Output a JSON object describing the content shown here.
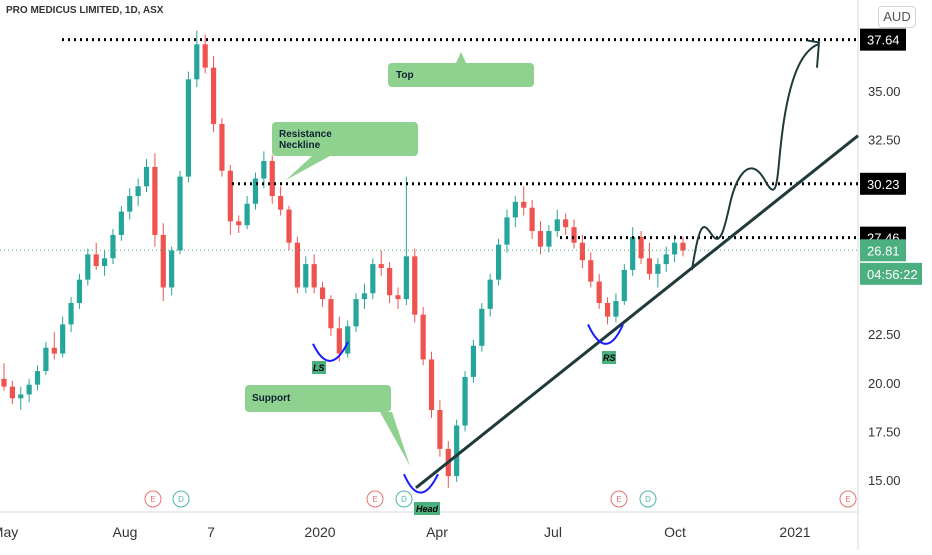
{
  "header": {
    "symbol_title": "PRO MEDICUS LIMITED, 1D, ASX",
    "currency": "AUD"
  },
  "chart_data": {
    "type": "candlestick",
    "title": "PRO MEDICUS LIMITED, 1D, ASX",
    "y_tick_labels": [
      "35.00",
      "32.50",
      "22.50",
      "20.00",
      "17.50",
      "15.00"
    ],
    "y_ticks": [
      35.0,
      32.5,
      22.5,
      20.0,
      17.5,
      15.0
    ],
    "ylim": [
      13.0,
      39.0
    ],
    "x_tick_labels": [
      "May",
      "Aug",
      "7",
      "2020",
      "Apr",
      "Jul",
      "Oct",
      "2021"
    ],
    "price_markers": [
      {
        "label": "37.64",
        "value": 37.64,
        "style": "dark"
      },
      {
        "label": "30.23",
        "value": 30.23,
        "style": "dark"
      },
      {
        "label": "27.46",
        "value": 27.46,
        "style": "dark"
      },
      {
        "label": "26.81",
        "value": 26.81,
        "style": "green"
      },
      {
        "label": "04:56:22",
        "value": 25.6,
        "style": "green"
      }
    ],
    "horizontal_levels": [
      37.64,
      30.23,
      27.46
    ],
    "last_price_line": 26.81,
    "annotations": {
      "top": "Top",
      "resistance": "Resistance\nNeckline",
      "support": "Support",
      "left_shoulder": "LS",
      "head": "Head",
      "right_shoulder": "RS"
    },
    "event_markers": [
      "E",
      "D",
      "E",
      "D",
      "E",
      "D",
      "E"
    ],
    "grid": false,
    "colors": {
      "up": "#26a69a",
      "down": "#ef5350",
      "trendline": "#1f3a3a",
      "arc": "#1a1aff",
      "callout": "#8fd18f",
      "marker_dark": "#000000",
      "marker_green": "#4caf80"
    },
    "series": [
      {
        "values": [
          [
            20.2,
            21.0,
            19.6,
            19.8
          ],
          [
            19.8,
            20.1,
            18.9,
            19.2
          ],
          [
            19.2,
            19.8,
            18.6,
            19.4
          ],
          [
            19.4,
            20.2,
            19.0,
            19.9
          ],
          [
            19.9,
            20.9,
            19.6,
            20.6
          ],
          [
            20.6,
            22.1,
            20.4,
            21.8
          ],
          [
            21.8,
            22.6,
            21.2,
            21.5
          ],
          [
            21.5,
            23.4,
            21.3,
            23.0
          ],
          [
            23.0,
            24.4,
            22.6,
            24.1
          ],
          [
            24.1,
            25.6,
            23.8,
            25.3
          ],
          [
            25.3,
            26.9,
            25.0,
            26.6
          ],
          [
            26.6,
            27.2,
            25.8,
            26.0
          ],
          [
            26.0,
            26.8,
            25.5,
            26.4
          ],
          [
            26.4,
            27.9,
            26.1,
            27.6
          ],
          [
            27.6,
            29.1,
            27.3,
            28.8
          ],
          [
            28.8,
            30.0,
            28.4,
            29.6
          ],
          [
            29.6,
            30.5,
            29.1,
            30.1
          ],
          [
            30.1,
            31.5,
            29.8,
            31.1
          ],
          [
            31.1,
            31.8,
            27.0,
            27.6
          ],
          [
            27.6,
            28.2,
            24.2,
            24.9
          ],
          [
            24.9,
            27.0,
            24.5,
            26.8
          ],
          [
            26.8,
            30.9,
            26.6,
            30.6
          ],
          [
            30.6,
            36.0,
            30.3,
            35.6
          ],
          [
            35.6,
            38.1,
            35.2,
            37.4
          ],
          [
            37.4,
            37.9,
            35.9,
            36.2
          ],
          [
            36.2,
            36.8,
            32.9,
            33.3
          ],
          [
            33.3,
            33.6,
            30.6,
            30.9
          ],
          [
            30.9,
            31.2,
            27.6,
            28.3
          ],
          [
            28.3,
            28.6,
            27.7,
            28.1
          ],
          [
            28.1,
            29.6,
            27.9,
            29.2
          ],
          [
            29.2,
            30.8,
            28.9,
            30.5
          ],
          [
            30.5,
            31.9,
            30.0,
            31.4
          ],
          [
            31.4,
            31.7,
            29.2,
            29.6
          ],
          [
            29.6,
            30.1,
            28.6,
            28.9
          ],
          [
            28.9,
            29.1,
            26.8,
            27.2
          ],
          [
            27.2,
            27.5,
            24.6,
            24.9
          ],
          [
            24.9,
            26.5,
            24.6,
            26.1
          ],
          [
            26.1,
            26.6,
            24.6,
            24.9
          ],
          [
            24.9,
            25.2,
            23.9,
            24.3
          ],
          [
            24.3,
            24.5,
            22.4,
            22.8
          ],
          [
            22.8,
            23.4,
            21.1,
            21.5
          ],
          [
            21.5,
            23.2,
            21.3,
            22.9
          ],
          [
            22.9,
            24.6,
            22.6,
            24.3
          ],
          [
            24.3,
            25.1,
            23.8,
            24.6
          ],
          [
            24.6,
            26.4,
            24.3,
            26.1
          ],
          [
            26.1,
            26.8,
            25.5,
            25.9
          ],
          [
            25.9,
            26.2,
            24.1,
            24.5
          ],
          [
            24.5,
            24.9,
            23.8,
            24.3
          ],
          [
            24.3,
            30.6,
            24.0,
            26.5
          ],
          [
            26.5,
            26.9,
            23.1,
            23.5
          ],
          [
            23.5,
            23.9,
            20.9,
            21.2
          ],
          [
            21.2,
            21.6,
            18.2,
            18.6
          ],
          [
            18.6,
            19.1,
            16.2,
            16.6
          ],
          [
            16.6,
            17.0,
            14.6,
            15.2
          ],
          [
            15.2,
            18.1,
            14.9,
            17.8
          ],
          [
            17.8,
            20.6,
            17.5,
            20.3
          ],
          [
            20.3,
            22.2,
            20.0,
            21.9
          ],
          [
            21.9,
            24.1,
            21.6,
            23.8
          ],
          [
            23.8,
            25.6,
            23.4,
            25.3
          ],
          [
            25.3,
            27.4,
            25.0,
            27.1
          ],
          [
            27.1,
            28.9,
            26.7,
            28.5
          ],
          [
            28.5,
            29.6,
            28.0,
            29.3
          ],
          [
            29.3,
            30.1,
            28.6,
            29.0
          ],
          [
            29.0,
            29.4,
            27.4,
            27.8
          ],
          [
            27.8,
            28.3,
            26.6,
            27.0
          ],
          [
            27.0,
            28.1,
            26.7,
            27.8
          ],
          [
            27.8,
            28.9,
            27.5,
            28.4
          ],
          [
            28.4,
            28.7,
            27.6,
            28.0
          ],
          [
            28.0,
            28.4,
            26.9,
            27.2
          ],
          [
            27.2,
            27.6,
            25.9,
            26.3
          ],
          [
            26.3,
            26.7,
            24.9,
            25.2
          ],
          [
            25.2,
            25.6,
            23.8,
            24.1
          ],
          [
            24.1,
            24.4,
            23.0,
            23.4
          ],
          [
            23.4,
            24.6,
            23.1,
            24.2
          ],
          [
            24.2,
            26.1,
            24.0,
            25.8
          ],
          [
            25.8,
            28.0,
            25.5,
            27.5
          ],
          [
            27.5,
            27.8,
            26.1,
            26.4
          ],
          [
            26.4,
            27.2,
            25.3,
            25.6
          ],
          [
            25.6,
            26.4,
            24.9,
            26.1
          ],
          [
            26.1,
            27.0,
            25.7,
            26.6
          ],
          [
            26.6,
            27.6,
            26.2,
            27.2
          ],
          [
            27.2,
            27.5,
            26.5,
            26.8
          ]
        ]
      }
    ]
  }
}
